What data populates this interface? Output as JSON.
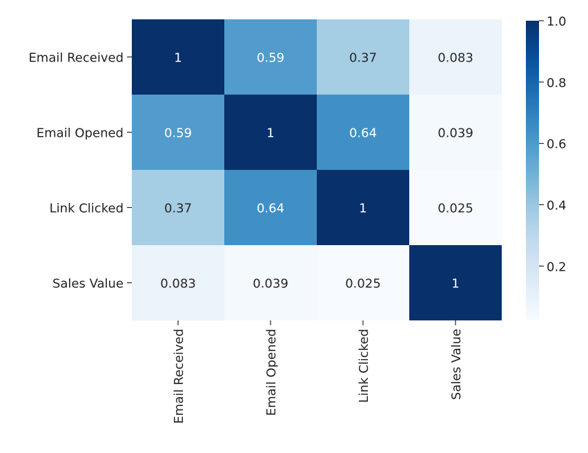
{
  "chart_data": {
    "type": "heatmap",
    "rows": [
      "Email Received",
      "Email Opened",
      "Link Clicked",
      "Sales Value"
    ],
    "columns": [
      "Email Received",
      "Email Opened",
      "Link Clicked",
      "Sales Value"
    ],
    "values": [
      [
        1,
        0.59,
        0.37,
        0.083
      ],
      [
        0.59,
        1,
        0.64,
        0.039
      ],
      [
        0.37,
        0.64,
        1,
        0.025
      ],
      [
        0.083,
        0.039,
        0.025,
        1
      ]
    ],
    "labels": [
      [
        "1",
        "0.59",
        "0.37",
        "0.083"
      ],
      [
        "0.59",
        "1",
        "0.64",
        "0.039"
      ],
      [
        "0.37",
        "0.64",
        "1",
        "0.025"
      ],
      [
        "0.083",
        "0.039",
        "0.025",
        "1"
      ]
    ],
    "colormap": "Blues",
    "colorbar": {
      "range": [
        0.025,
        1.0
      ],
      "ticks": [
        0.2,
        0.4,
        0.6,
        0.8,
        1.0
      ],
      "tick_labels": [
        "0.2",
        "0.4",
        "0.6",
        "0.8",
        "1.0"
      ]
    },
    "title": "",
    "xlabel": "",
    "ylabel": ""
  }
}
